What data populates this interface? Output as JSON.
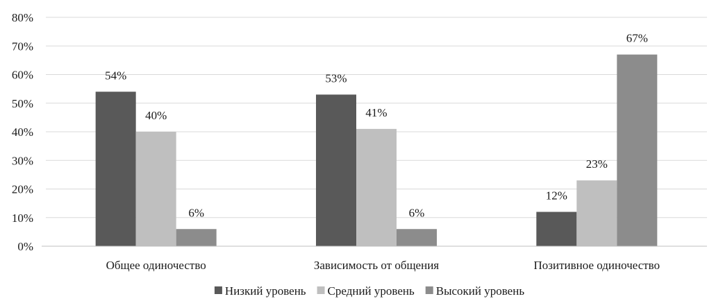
{
  "chart_data": {
    "type": "bar",
    "title": "",
    "xlabel": "",
    "ylabel": "",
    "categories": [
      "Общее одиночество",
      "Зависимость от общения",
      "Позитивное одиночество"
    ],
    "series": [
      {
        "name": "Низкий уровень",
        "values": [
          54,
          53,
          12
        ],
        "labels": [
          "54%",
          "53%",
          "12%"
        ],
        "color": "#595959"
      },
      {
        "name": "Средний уровень",
        "values": [
          40,
          41,
          23
        ],
        "labels": [
          "40%",
          "41%",
          "23%"
        ],
        "color": "#bfbfbf"
      },
      {
        "name": "Высокий уровень",
        "values": [
          6,
          6,
          67
        ],
        "labels": [
          "6%",
          "6%",
          "67%"
        ],
        "color": "#8c8c8c"
      }
    ],
    "ylim": [
      0,
      80
    ],
    "yticks": [
      0,
      10,
      20,
      30,
      40,
      50,
      60,
      70,
      80
    ],
    "ytick_labels": [
      "0%",
      "10%",
      "20%",
      "30%",
      "40%",
      "50%",
      "60%",
      "70%",
      "80%"
    ],
    "grid": true,
    "legend_position": "bottom",
    "gridline_color": "#d9d9d9",
    "axis_color": "#bfbfbf"
  }
}
